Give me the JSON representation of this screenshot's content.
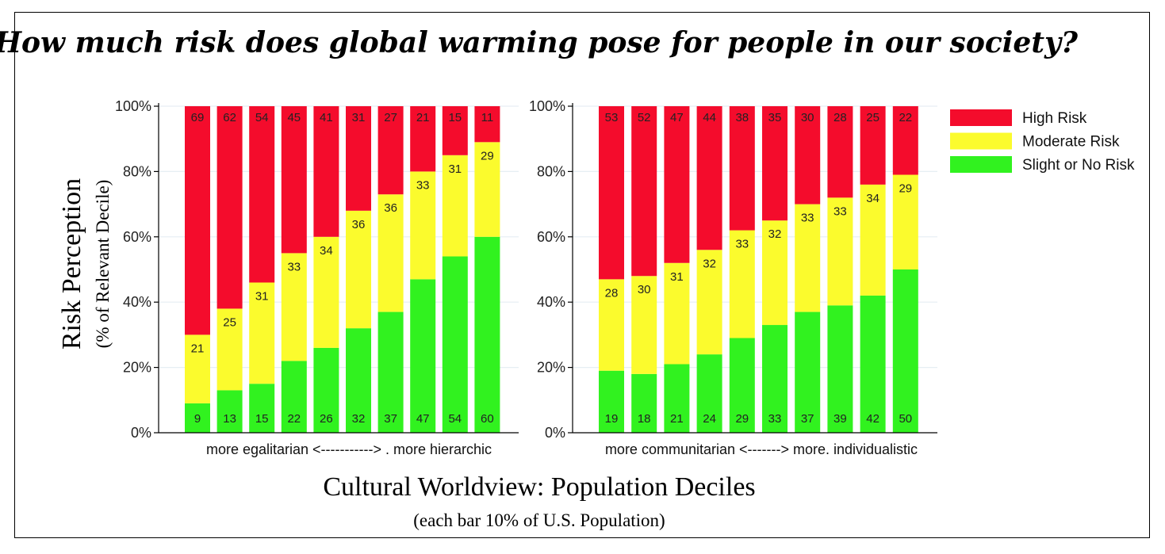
{
  "chart_data": {
    "type": "bar",
    "stacked": true,
    "title": "How much risk does global warming pose for people in our society?",
    "ylabel": "Risk Perception",
    "ylabel_sub": "(% of Relevant Decile)",
    "xlabel": "Cultural Worldview: Population Deciles",
    "xlabel_sub": "(each bar 10% of U.S. Population)",
    "ylim": [
      0,
      100
    ],
    "yticks": [
      "0%",
      "20%",
      "40%",
      "60%",
      "80%",
      "100%"
    ],
    "grid": true,
    "legend_position": "top-right",
    "legend": [
      {
        "name": "High Risk",
        "color": "#f40c2c"
      },
      {
        "name": "Moderate Risk",
        "color": "#fbfb2d"
      },
      {
        "name": "Slight or No Risk",
        "color": "#31f21f"
      }
    ],
    "panels": [
      {
        "caption": "more egalitarian <-----------> . more hierarchic",
        "series": [
          {
            "name": "Slight or No Risk",
            "values": [
              9,
              13,
              15,
              22,
              26,
              32,
              37,
              47,
              54,
              60
            ]
          },
          {
            "name": "Moderate Risk",
            "values": [
              21,
              25,
              31,
              33,
              34,
              36,
              36,
              33,
              31,
              29
            ]
          },
          {
            "name": "High Risk",
            "values": [
              69,
              62,
              54,
              45,
              41,
              31,
              27,
              21,
              15,
              11
            ]
          }
        ]
      },
      {
        "caption": "more communitarian <-------> more. individualistic",
        "series": [
          {
            "name": "Slight or No Risk",
            "values": [
              19,
              18,
              21,
              24,
              29,
              33,
              37,
              39,
              42,
              50
            ]
          },
          {
            "name": "Moderate Risk",
            "values": [
              28,
              30,
              31,
              32,
              33,
              32,
              33,
              33,
              34,
              29
            ]
          },
          {
            "name": "High Risk",
            "values": [
              53,
              52,
              47,
              44,
              38,
              35,
              30,
              28,
              25,
              22
            ]
          }
        ]
      }
    ]
  }
}
